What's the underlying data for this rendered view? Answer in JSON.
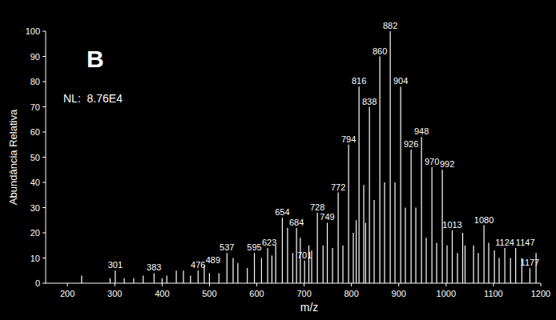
{
  "chart_data": {
    "type": "bar",
    "title": "B",
    "subtitle": "NL:  8.76E4",
    "x_label": "m/z",
    "y_label": "Abundância Relativa",
    "color": "#ffffff",
    "x": [
      230,
      290,
      301,
      320,
      340,
      360,
      383,
      400,
      410,
      430,
      445,
      460,
      476,
      489,
      500,
      520,
      537,
      550,
      560,
      580,
      595,
      610,
      623,
      632,
      640,
      654,
      665,
      676,
      684,
      692,
      701,
      710,
      716,
      728,
      740,
      749,
      760,
      772,
      782,
      794,
      804,
      810,
      816,
      826,
      830,
      838,
      848,
      860,
      870,
      882,
      892,
      904,
      914,
      926,
      936,
      948,
      958,
      970,
      980,
      992,
      1002,
      1013,
      1024,
      1035,
      1040,
      1058,
      1068,
      1080,
      1090,
      1102,
      1112,
      1124,
      1136,
      1147,
      1160,
      1177,
      1190
    ],
    "values": [
      3,
      2,
      5,
      2,
      2,
      3,
      4,
      2,
      3,
      5,
      5,
      3,
      5,
      7,
      4,
      4,
      12,
      10,
      8,
      6,
      12,
      10,
      14,
      11,
      15,
      26,
      22,
      12,
      22,
      18,
      9,
      15,
      13,
      28,
      15,
      24,
      14,
      36,
      15,
      55,
      20,
      25,
      78,
      39,
      24,
      70,
      33,
      90,
      40,
      100,
      40,
      78,
      30,
      53,
      30,
      58,
      18,
      46,
      16,
      45,
      15,
      21,
      12,
      20,
      15,
      15,
      12,
      23,
      16,
      13,
      10,
      14,
      10,
      14,
      10,
      6,
      12
    ],
    "annotations": [
      {
        "text": "301",
        "x": 301
      },
      {
        "text": "383",
        "x": 383
      },
      {
        "text": "476",
        "x": 476
      },
      {
        "text": "489",
        "x": 489
      },
      {
        "text": "537",
        "x": 537
      },
      {
        "text": "595",
        "x": 595
      },
      {
        "text": "623",
        "x": 623
      },
      {
        "text": "654",
        "x": 654
      },
      {
        "text": "684",
        "x": 684
      },
      {
        "text": "701",
        "x": 701
      },
      {
        "text": "728",
        "x": 728
      },
      {
        "text": "749",
        "x": 749
      },
      {
        "text": "772",
        "x": 772
      },
      {
        "text": "794",
        "x": 794
      },
      {
        "text": "816",
        "x": 816
      },
      {
        "text": "838",
        "x": 838
      },
      {
        "text": "860",
        "x": 860
      },
      {
        "text": "882",
        "x": 882
      },
      {
        "text": "904",
        "x": 904
      },
      {
        "text": "926",
        "x": 926
      },
      {
        "text": "948",
        "x": 948
      },
      {
        "text": "970",
        "x": 970
      },
      {
        "text": "992",
        "x": 992
      },
      {
        "text": "1013",
        "x": 1013
      },
      {
        "text": "1080",
        "x": 1080
      },
      {
        "text": "1124",
        "x": 1124
      },
      {
        "text": "1147",
        "x": 1147
      },
      {
        "text": "1177",
        "x": 1177
      }
    ],
    "xlim": [
      154,
      1200
    ],
    "xticks": [
      200,
      300,
      400,
      500,
      600,
      700,
      800,
      900,
      1000,
      1100,
      1200
    ],
    "ylim": [
      0,
      100
    ],
    "yticks": [
      0,
      10,
      20,
      30,
      40,
      50,
      60,
      70,
      80,
      90,
      100
    ],
    "grid": false
  }
}
